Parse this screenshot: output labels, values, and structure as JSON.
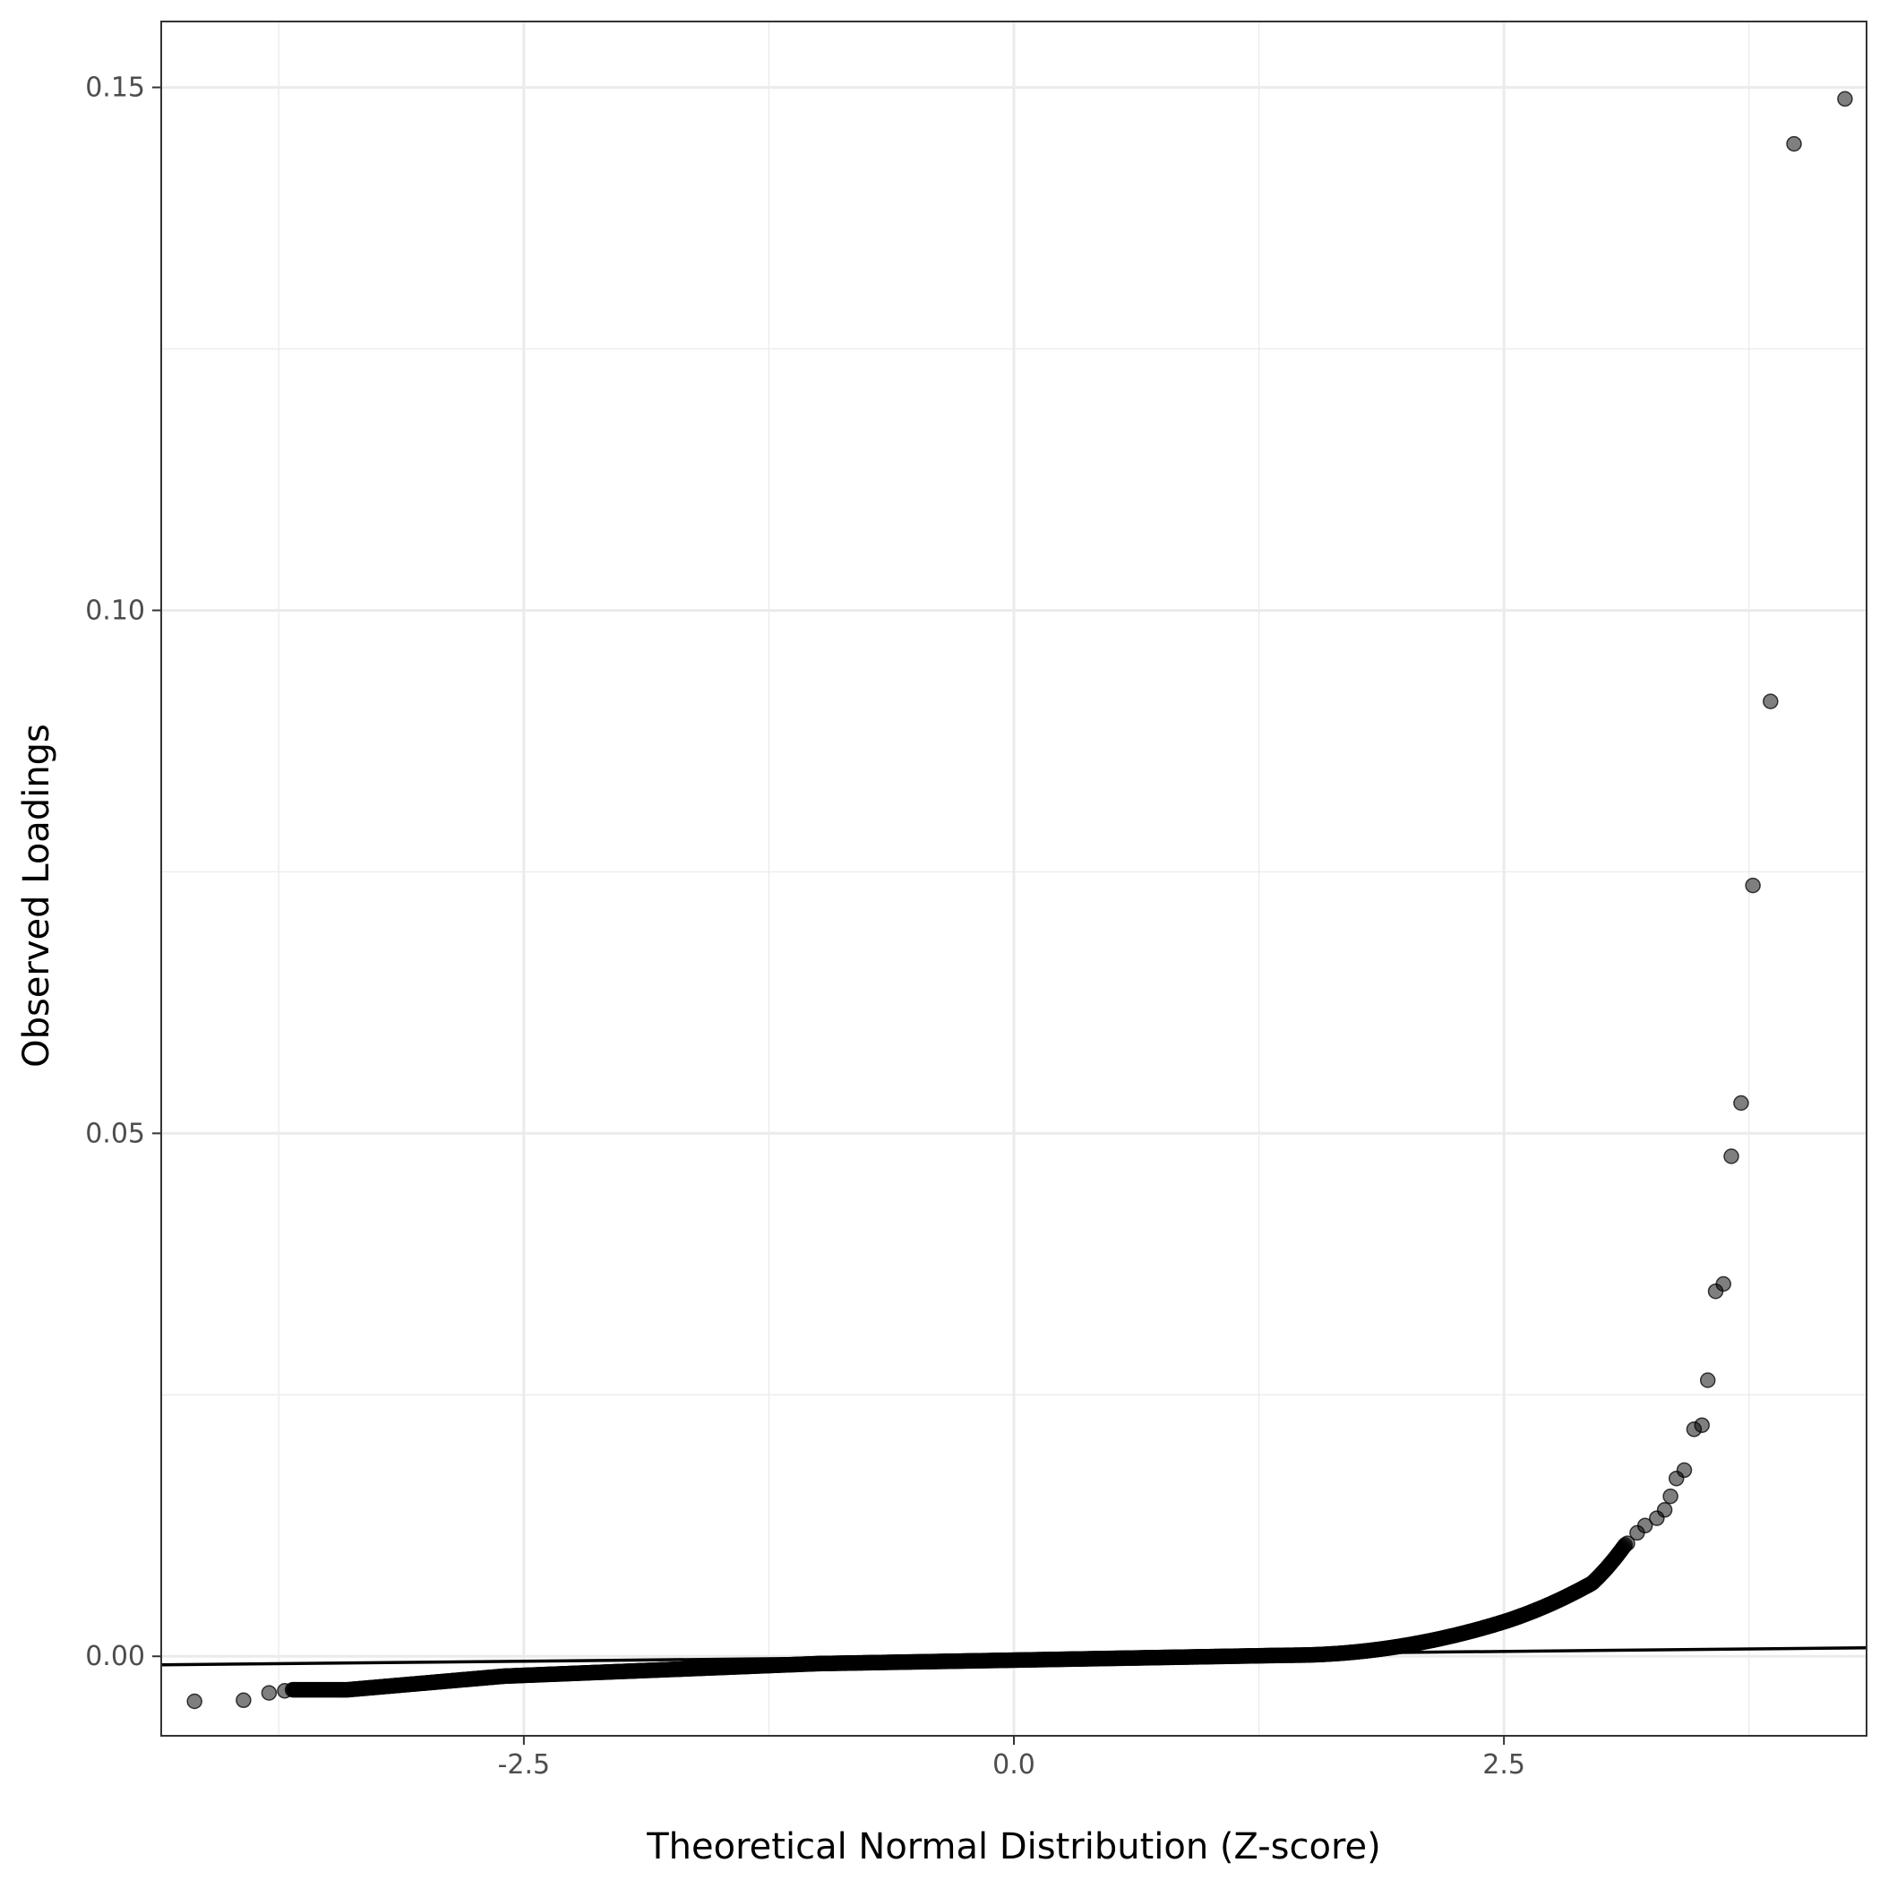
{
  "chart_data": {
    "type": "scatter",
    "title": "",
    "xlabel": "Theoretical Normal Distribution (Z-score)",
    "ylabel": "Observed Loadings",
    "xlim": [
      -4.35,
      4.35
    ],
    "ylim": [
      -0.0076,
      0.1563
    ],
    "x_ticks": [
      {
        "value": -2.5,
        "label": "-2.5"
      },
      {
        "value": 0.0,
        "label": "0.0"
      },
      {
        "value": 2.5,
        "label": "2.5"
      }
    ],
    "y_ticks": [
      {
        "value": 0.0,
        "label": "0.00"
      },
      {
        "value": 0.05,
        "label": "0.05"
      },
      {
        "value": 0.1,
        "label": "0.10"
      },
      {
        "value": 0.15,
        "label": "0.15"
      }
    ],
    "grid": true,
    "reference_line": {
      "intercept": 0.0,
      "slope": 0.000187
    },
    "series": [
      {
        "points_outliers": [
          [
            -4.18,
            -0.0043
          ],
          [
            -3.93,
            -0.0042
          ],
          [
            -3.8,
            -0.0035
          ],
          [
            -3.72,
            -0.0033
          ],
          [
            3.13,
            0.0108
          ],
          [
            3.18,
            0.0118
          ],
          [
            3.22,
            0.0125
          ],
          [
            3.28,
            0.0132
          ],
          [
            3.32,
            0.014
          ],
          [
            3.35,
            0.0153
          ],
          [
            3.38,
            0.017
          ],
          [
            3.42,
            0.0178
          ],
          [
            3.47,
            0.0217
          ],
          [
            3.51,
            0.0221
          ],
          [
            3.54,
            0.0264
          ],
          [
            3.58,
            0.0349
          ],
          [
            3.62,
            0.0356
          ],
          [
            3.66,
            0.0478
          ],
          [
            3.71,
            0.0529
          ],
          [
            3.77,
            0.0737
          ],
          [
            3.86,
            0.0913
          ],
          [
            3.98,
            0.1446
          ],
          [
            4.24,
            0.1489
          ]
        ]
      }
    ]
  }
}
